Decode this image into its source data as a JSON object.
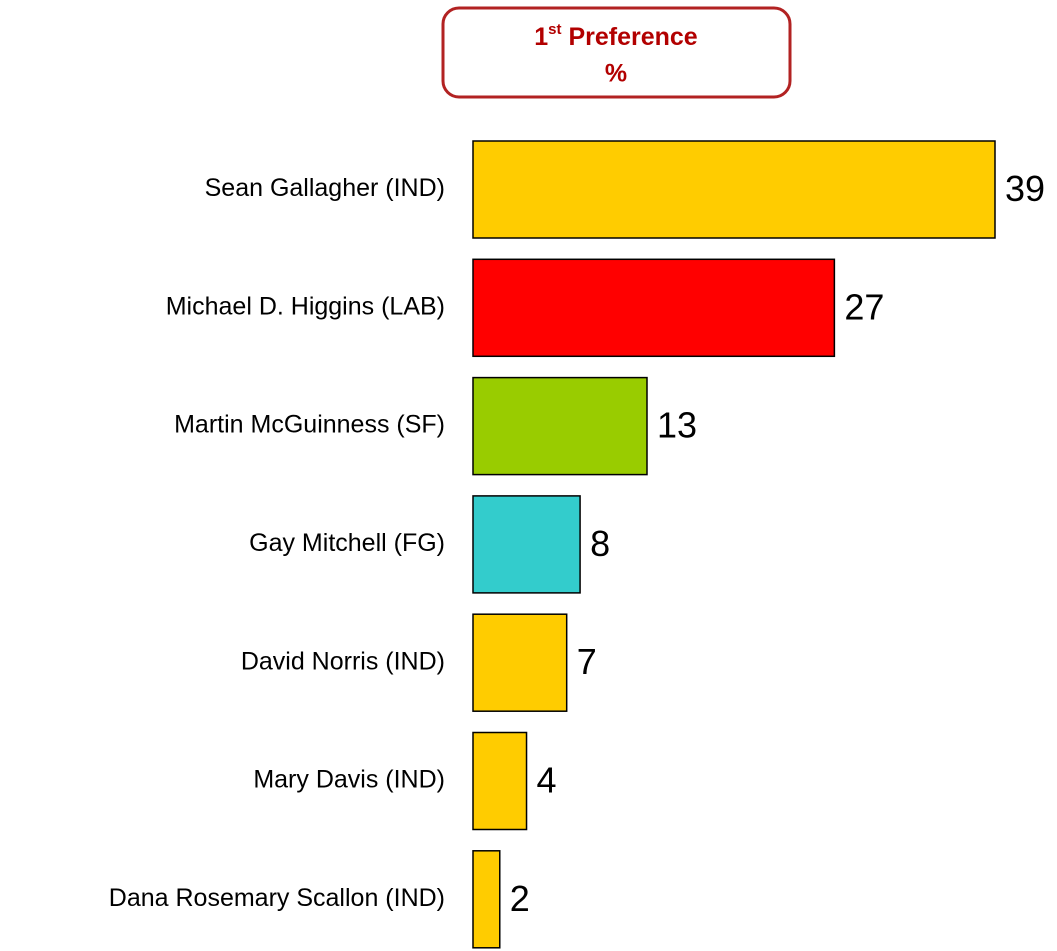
{
  "chart_data": {
    "type": "hbar",
    "title": {
      "number": "1",
      "suffix": "st",
      "text": " Preference",
      "unit": "%"
    },
    "categories": [
      "Sean Gallagher (IND)",
      "Michael D. Higgins (LAB)",
      "Martin McGuinness (SF)",
      "Gay Mitchell (FG)",
      "David Norris (IND)",
      "Mary Davis (IND)",
      "Dana Rosemary Scallon (IND)"
    ],
    "values": [
      39,
      27,
      13,
      8,
      7,
      4,
      2
    ],
    "colors": [
      "#ffcc00",
      "#ff0000",
      "#99cc00",
      "#33cccc",
      "#ffcc00",
      "#ffcc00",
      "#ffcc00"
    ]
  }
}
